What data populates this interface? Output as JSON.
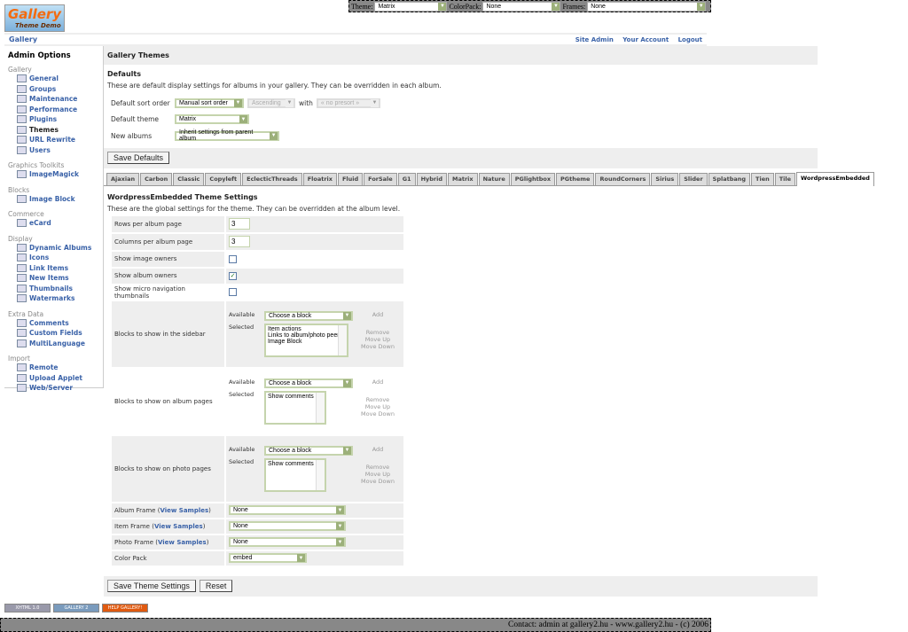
{
  "topbar": {
    "theme_label": "Theme:",
    "theme_value": "Matrix",
    "colorpack_label": "ColorPack:",
    "colorpack_value": "None",
    "frames_label": "Frames:",
    "frames_value": "None"
  },
  "logo_text": "Gallery Theme Demo",
  "header": {
    "breadcrumb": "Gallery",
    "links": [
      "Site Admin",
      "Your Account",
      "Logout"
    ]
  },
  "sidebar": {
    "title": "Admin Options",
    "groups": [
      {
        "label": "Gallery",
        "items": [
          "General",
          "Groups",
          "Maintenance",
          "Performance",
          "Plugins",
          "Themes",
          "URL Rewrite",
          "Users"
        ]
      },
      {
        "label": "Graphics Toolkits",
        "items": [
          "ImageMagick"
        ]
      },
      {
        "label": "Blocks",
        "items": [
          "Image Block"
        ]
      },
      {
        "label": "Commerce",
        "items": [
          "eCard"
        ]
      },
      {
        "label": "Display",
        "items": [
          "Dynamic Albums",
          "Icons",
          "Link Items",
          "New Items",
          "Thumbnails",
          "Watermarks"
        ]
      },
      {
        "label": "Extra Data",
        "items": [
          "Comments",
          "Custom Fields",
          "MultiLanguage"
        ]
      },
      {
        "label": "Import",
        "items": [
          "Remote",
          "Upload Applet",
          "Web/Server"
        ]
      }
    ],
    "current": "Themes"
  },
  "main": {
    "title": "Gallery Themes",
    "defaults": {
      "heading": "Defaults",
      "description": "These are default display settings for albums in your gallery. They can be overridden in each album.",
      "sort_label": "Default sort order",
      "sort_value": "Manual sort order",
      "direction_value": "Ascending",
      "with_label": "with",
      "presort_value": "« no presort »",
      "theme_label": "Default theme",
      "theme_value": "Matrix",
      "new_albums_label": "New albums",
      "new_albums_value": "Inherit settings from parent album",
      "save_label": "Save Defaults"
    },
    "tabs": [
      "Ajaxian",
      "Carbon",
      "Classic",
      "Copyleft",
      "EclecticThreads",
      "Floatrix",
      "Fluid",
      "ForSale",
      "G1",
      "Hybrid",
      "Matrix",
      "Nature",
      "PGlightbox",
      "PGtheme",
      "RoundCorners",
      "Sirius",
      "Slider",
      "Splatbang",
      "Tien",
      "Tile",
      "WordpressEmbedded"
    ],
    "active_tab": "WordpressEmbedded",
    "settings": {
      "heading": "WordpressEmbedded Theme Settings",
      "description": "These are the global settings for the theme. They can be overridden at the album level.",
      "rows_label": "Rows per album page",
      "rows_value": "3",
      "cols_label": "Columns per album page",
      "cols_value": "3",
      "owners_label": "Show image owners",
      "owners_checked": false,
      "album_owners_label": "Show album owners",
      "album_owners_checked": true,
      "micro_label": "Show micro navigation thumbnails",
      "micro_checked": false,
      "available_label": "Available",
      "selected_label": "Selected",
      "choose": "Choose a block",
      "add": "Add",
      "remove": "Remove",
      "move_up": "Move Up",
      "move_down": "Move Down",
      "blocks": [
        {
          "label": "Blocks to show in the sidebar",
          "selected": [
            "Item actions",
            "Links to album/photo peers",
            "Image Block"
          ]
        },
        {
          "label": "Blocks to show on album pages",
          "selected": [
            "Show comments"
          ]
        },
        {
          "label": "Blocks to show on photo pages",
          "selected": [
            "Show comments"
          ]
        }
      ],
      "view_samples": "View Samples",
      "album_frame_label": "Album Frame",
      "album_frame_value": "None",
      "item_frame_label": "Item Frame",
      "item_frame_value": "None",
      "photo_frame_label": "Photo Frame",
      "photo_frame_value": "None",
      "color_pack_label": "Color Pack",
      "color_pack_value": "embed",
      "save_label": "Save Theme Settings",
      "reset_label": "Reset"
    }
  },
  "badges": [
    "XHTML 1.0",
    "GALLERY 2",
    "HELP GALLERY!"
  ],
  "footer": "Contact: admin at gallery2.hu - www.gallery2.hu - (c) 2006"
}
